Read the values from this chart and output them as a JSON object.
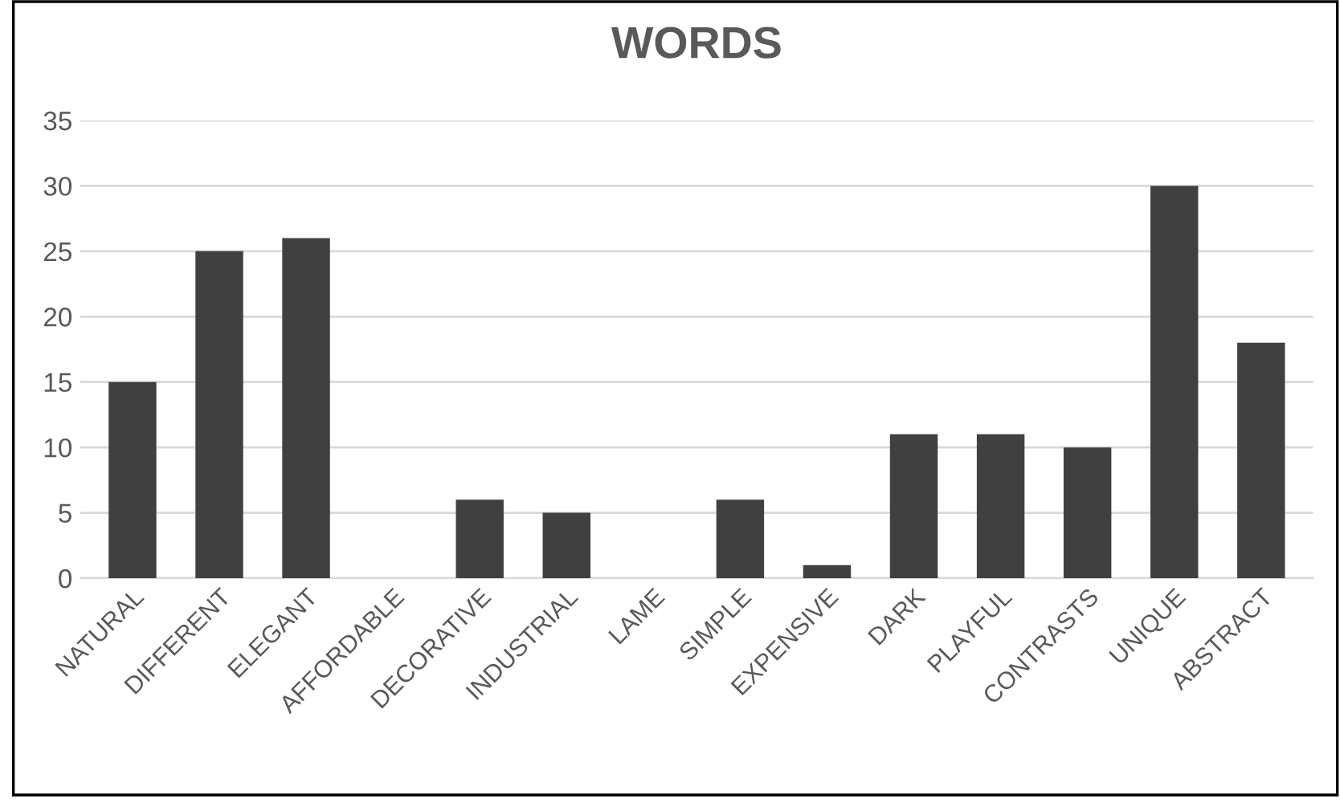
{
  "chart_data": {
    "type": "bar",
    "title": "WORDS",
    "categories": [
      "NATURAL",
      "DIFFERENT",
      "ELEGANT",
      "AFFORDABLE",
      "DECORATIVE",
      "INDUSTRIAL",
      "LAME",
      "SIMPLE",
      "EXPENSIVE",
      "DARK",
      "PLAYFUL",
      "CONTRASTS",
      "UNIQUE",
      "ABSTRACT"
    ],
    "values": [
      15,
      25,
      26,
      0,
      6,
      5,
      0,
      6,
      1,
      11,
      11,
      10,
      30,
      18
    ],
    "color": "#404040",
    "ylim": [
      0,
      35
    ],
    "yticks": [
      0,
      5,
      10,
      15,
      20,
      25,
      30,
      35
    ],
    "grid": "y",
    "legend": false
  }
}
